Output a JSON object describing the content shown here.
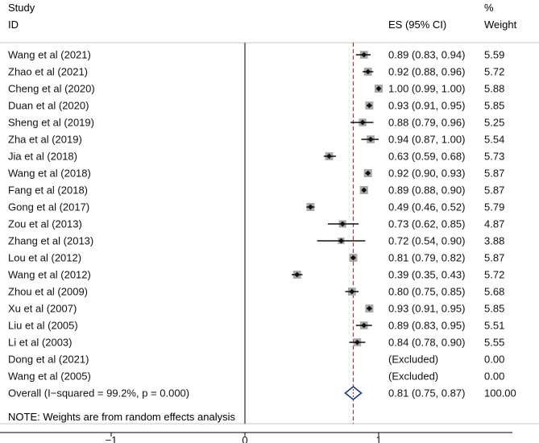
{
  "chart_data": {
    "type": "forest",
    "header": {
      "study_label_line1": "Study",
      "study_label_line2": "ID",
      "es_label": "ES (95% CI)",
      "weight_label_line1": "%",
      "weight_label_line2": "Weight"
    },
    "studies": [
      {
        "name": "Wang et al (2021)",
        "es": 0.89,
        "lo": 0.83,
        "hi": 0.94,
        "ci_text": "0.89 (0.83, 0.94)",
        "weight": 5.59,
        "weight_text": "5.59"
      },
      {
        "name": "Zhao et al (2021)",
        "es": 0.92,
        "lo": 0.88,
        "hi": 0.96,
        "ci_text": "0.92 (0.88, 0.96)",
        "weight": 5.72,
        "weight_text": "5.72"
      },
      {
        "name": "Cheng et al (2020)",
        "es": 1.0,
        "lo": 0.99,
        "hi": 1.0,
        "ci_text": "1.00 (0.99, 1.00)",
        "weight": 5.88,
        "weight_text": "5.88"
      },
      {
        "name": "Duan et al (2020)",
        "es": 0.93,
        "lo": 0.91,
        "hi": 0.95,
        "ci_text": "0.93 (0.91, 0.95)",
        "weight": 5.85,
        "weight_text": "5.85"
      },
      {
        "name": "Sheng et al (2019)",
        "es": 0.88,
        "lo": 0.79,
        "hi": 0.96,
        "ci_text": "0.88 (0.79, 0.96)",
        "weight": 5.25,
        "weight_text": "5.25"
      },
      {
        "name": "Zha et al (2019)",
        "es": 0.94,
        "lo": 0.87,
        "hi": 1.0,
        "ci_text": "0.94 (0.87, 1.00)",
        "weight": 5.54,
        "weight_text": "5.54"
      },
      {
        "name": "Jia et al (2018)",
        "es": 0.63,
        "lo": 0.59,
        "hi": 0.68,
        "ci_text": "0.63 (0.59, 0.68)",
        "weight": 5.73,
        "weight_text": "5.73"
      },
      {
        "name": "Wang et al (2018)",
        "es": 0.92,
        "lo": 0.9,
        "hi": 0.93,
        "ci_text": "0.92 (0.90, 0.93)",
        "weight": 5.87,
        "weight_text": "5.87"
      },
      {
        "name": "Fang et al (2018)",
        "es": 0.89,
        "lo": 0.88,
        "hi": 0.9,
        "ci_text": "0.89 (0.88, 0.90)",
        "weight": 5.87,
        "weight_text": "5.87"
      },
      {
        "name": "Gong et al (2017)",
        "es": 0.49,
        "lo": 0.46,
        "hi": 0.52,
        "ci_text": "0.49 (0.46, 0.52)",
        "weight": 5.79,
        "weight_text": "5.79"
      },
      {
        "name": "Zou et al (2013)",
        "es": 0.73,
        "lo": 0.62,
        "hi": 0.85,
        "ci_text": "0.73 (0.62, 0.85)",
        "weight": 4.87,
        "weight_text": "4.87"
      },
      {
        "name": "Zhang et al (2013)",
        "es": 0.72,
        "lo": 0.54,
        "hi": 0.9,
        "ci_text": "0.72 (0.54, 0.90)",
        "weight": 3.88,
        "weight_text": "3.88"
      },
      {
        "name": "Lou et al (2012)",
        "es": 0.81,
        "lo": 0.79,
        "hi": 0.82,
        "ci_text": "0.81 (0.79, 0.82)",
        "weight": 5.87,
        "weight_text": "5.87"
      },
      {
        "name": "Wang et al (2012)",
        "es": 0.39,
        "lo": 0.35,
        "hi": 0.43,
        "ci_text": "0.39 (0.35, 0.43)",
        "weight": 5.72,
        "weight_text": "5.72"
      },
      {
        "name": "Zhou et al (2009)",
        "es": 0.8,
        "lo": 0.75,
        "hi": 0.85,
        "ci_text": "0.80 (0.75, 0.85)",
        "weight": 5.68,
        "weight_text": "5.68"
      },
      {
        "name": "Xu et al (2007)",
        "es": 0.93,
        "lo": 0.91,
        "hi": 0.95,
        "ci_text": "0.93 (0.91, 0.95)",
        "weight": 5.85,
        "weight_text": "5.85"
      },
      {
        "name": "Liu et al (2005)",
        "es": 0.89,
        "lo": 0.83,
        "hi": 0.95,
        "ci_text": "0.89 (0.83, 0.95)",
        "weight": 5.51,
        "weight_text": "5.51"
      },
      {
        "name": "Li et al (2003)",
        "es": 0.84,
        "lo": 0.78,
        "hi": 0.9,
        "ci_text": "0.84 (0.78, 0.90)",
        "weight": 5.55,
        "weight_text": "5.55"
      },
      {
        "name": "Dong et al (2021)",
        "es": null,
        "lo": null,
        "hi": null,
        "ci_text": "(Excluded)",
        "weight": 0.0,
        "weight_text": "0.00"
      },
      {
        "name": "Wang et al (2005)",
        "es": null,
        "lo": null,
        "hi": null,
        "ci_text": "(Excluded)",
        "weight": 0.0,
        "weight_text": "0.00"
      }
    ],
    "overall": {
      "label": "Overall  (I−squared = 99.2%, p = 0.000)",
      "es": 0.81,
      "lo": 0.75,
      "hi": 0.87,
      "ci_text": "0.81 (0.75, 0.87)",
      "weight_text": "100.00"
    },
    "note": "NOTE: Weights are from random effects analysis",
    "x_ticks": [
      {
        "value": -1,
        "label": "−1"
      },
      {
        "value": 0,
        "label": "0"
      },
      {
        "value": 1,
        "label": "1"
      }
    ],
    "xlim": [
      -1.97,
      2.0
    ],
    "null_line": 0,
    "colors": {
      "text": "#111111",
      "marker": "#111111",
      "weight_box": "#a8a8a8",
      "reference_line": "#b03030",
      "diamond": "#1f3a7a",
      "divider": "#c8c8c8"
    }
  }
}
